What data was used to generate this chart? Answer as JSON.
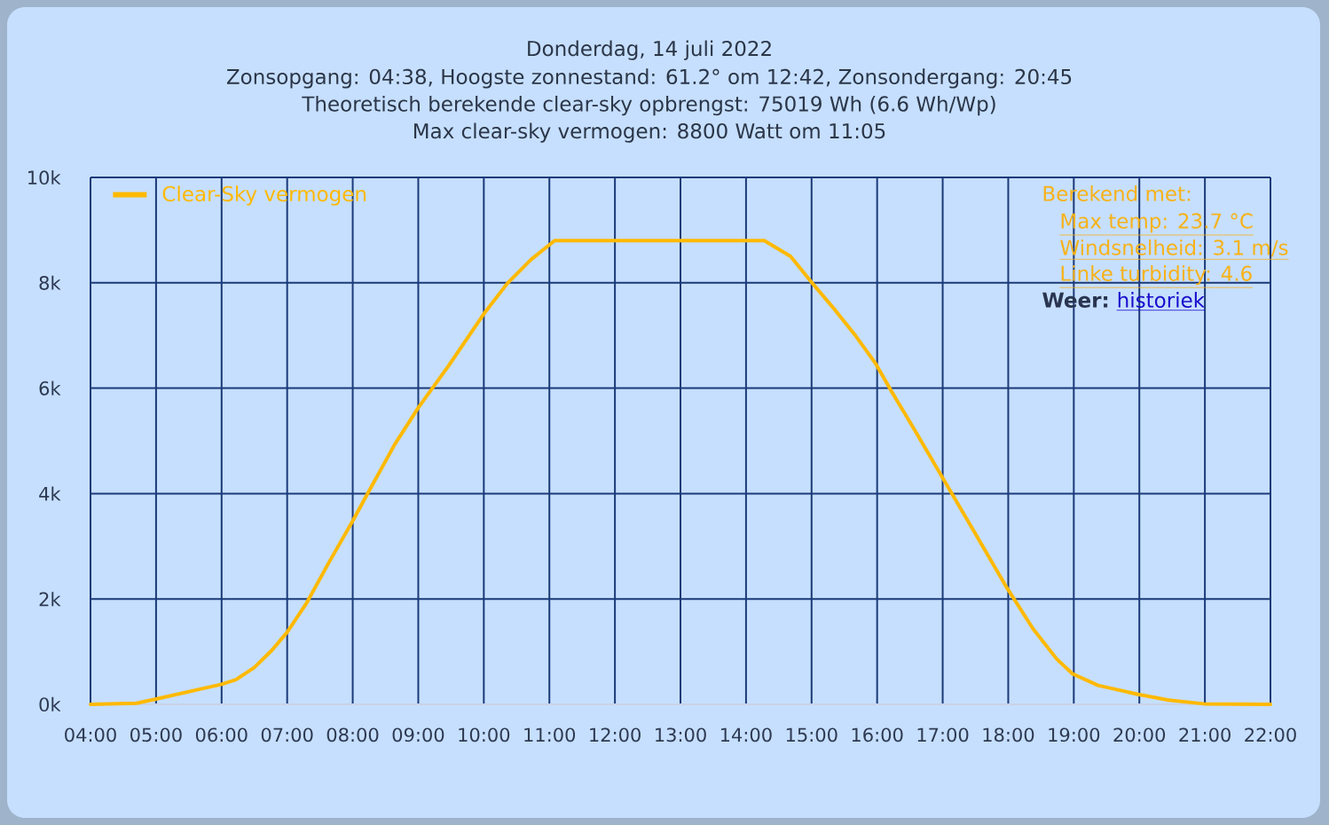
{
  "chart_data": {
    "type": "line",
    "title": "Donderdag, 14 juli 2022",
    "subtitle": "Zonsopgang: 04:38, Hoogste zonnestand: 61.2° om 12:42, Zonsondergang: 20:45",
    "annotations": [
      "Theoretisch berekende clear-sky opbrengst: 75019 Wh (6.6 Wh/Wp)",
      "Max clear-sky vermogen: 8800 Watt om 11:05",
      "Berekend met:",
      "Max temp: 23.7 °C",
      "Windsnelheid: 3.1 m/s",
      "Linke turbidity: 4.6",
      "Weer:",
      "historiek"
    ],
    "x": [
      4.0,
      4.7,
      5.0,
      6.0,
      6.22,
      6.5,
      6.77,
      7.0,
      7.3,
      7.65,
      8.0,
      8.28,
      8.64,
      9.0,
      9.46,
      10.0,
      10.36,
      10.72,
      11.08,
      14.28,
      14.68,
      15.0,
      15.32,
      15.68,
      15.97,
      16.22,
      16.58,
      16.98,
      17.48,
      17.98,
      18.38,
      18.74,
      18.98,
      19.37,
      19.98,
      20.45,
      20.98,
      22.0
    ],
    "series": [
      {
        "name": "Clear-Sky vermogen",
        "color": "#ffb900",
        "values": [
          0,
          20,
          100,
          380,
          470,
          700,
          1030,
          1370,
          1930,
          2720,
          3480,
          4120,
          4930,
          5630,
          6420,
          7410,
          7990,
          8440,
          8800,
          8800,
          8500,
          8010,
          7540,
          6980,
          6480,
          5940,
          5190,
          4340,
          3280,
          2210,
          1430,
          860,
          580,
          360,
          190,
          80,
          10,
          0
        ]
      }
    ],
    "xlim": [
      4,
      22
    ],
    "xticks": [
      {
        "value": 4,
        "label": "04:00"
      },
      {
        "value": 5,
        "label": "05:00"
      },
      {
        "value": 6,
        "label": "06:00"
      },
      {
        "value": 7,
        "label": "07:00"
      },
      {
        "value": 8,
        "label": "08:00"
      },
      {
        "value": 9,
        "label": "09:00"
      },
      {
        "value": 10,
        "label": "10:00"
      },
      {
        "value": 11,
        "label": "11:00"
      },
      {
        "value": 12,
        "label": "12:00"
      },
      {
        "value": 13,
        "label": "13:00"
      },
      {
        "value": 14,
        "label": "14:00"
      },
      {
        "value": 15,
        "label": "15:00"
      },
      {
        "value": 16,
        "label": "16:00"
      },
      {
        "value": 17,
        "label": "17:00"
      },
      {
        "value": 18,
        "label": "18:00"
      },
      {
        "value": 19,
        "label": "19:00"
      },
      {
        "value": 20,
        "label": "20:00"
      },
      {
        "value": 21,
        "label": "21:00"
      },
      {
        "value": 22,
        "label": "22:00"
      }
    ],
    "ylim": [
      0,
      10000
    ],
    "yticks": [
      {
        "value": 0,
        "label": "0k"
      },
      {
        "value": 2000,
        "label": "2k"
      },
      {
        "value": 4000,
        "label": "4k"
      },
      {
        "value": 6000,
        "label": "6k"
      },
      {
        "value": 8000,
        "label": "8k"
      },
      {
        "value": 10000,
        "label": "10k"
      }
    ],
    "grid": true,
    "legend": "top left"
  }
}
